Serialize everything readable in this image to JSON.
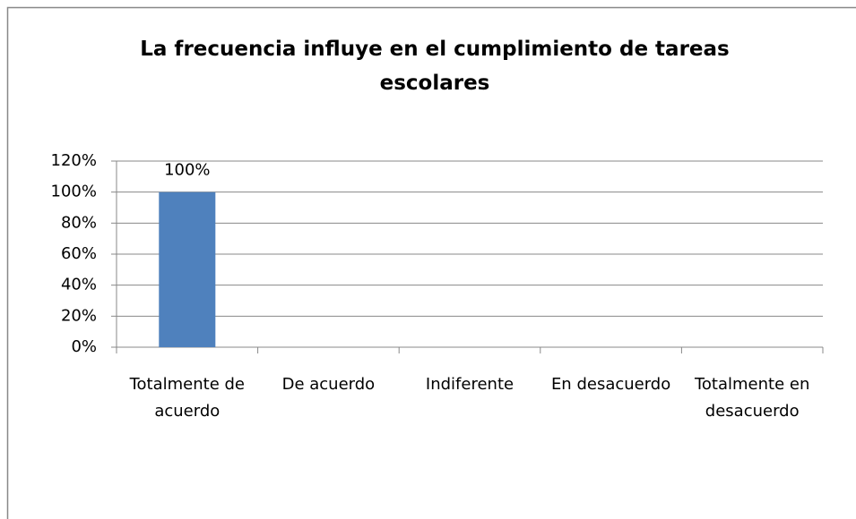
{
  "chart_data": {
    "type": "bar",
    "title": "La frecuencia influye en el cumplimiento de tareas escolares",
    "categories": [
      "Totalmente de acuerdo",
      "De acuerdo",
      "Indiferente",
      "En desacuerdo",
      "Totalmente en desacuerdo"
    ],
    "values": [
      100,
      0,
      0,
      0,
      0
    ],
    "value_labels": [
      "100%",
      null,
      null,
      null,
      null
    ],
    "color": "#4f81bd",
    "ylim": [
      0,
      120
    ],
    "yticks": [
      {
        "value": 0,
        "label": "0%"
      },
      {
        "value": 20,
        "label": "20%"
      },
      {
        "value": 40,
        "label": "40%"
      },
      {
        "value": 60,
        "label": "60%"
      },
      {
        "value": 80,
        "label": "80%"
      },
      {
        "value": 100,
        "label": "100%"
      },
      {
        "value": 120,
        "label": "120%"
      }
    ],
    "grid": true
  }
}
